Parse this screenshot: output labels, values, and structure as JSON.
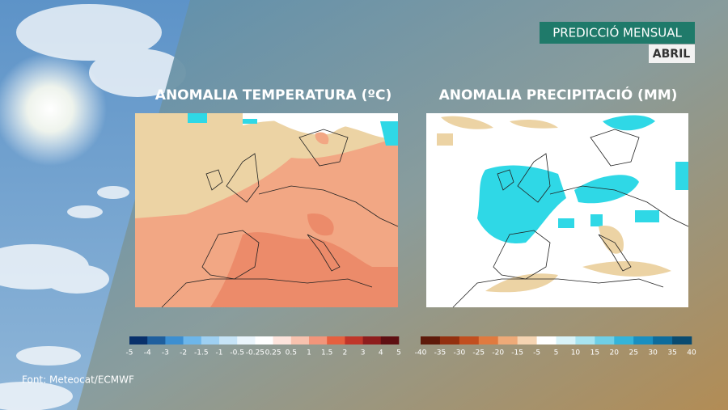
{
  "header": {
    "title": "PREDICCIÓ MENSUAL",
    "subtitle": "ABRIL"
  },
  "maps": [
    {
      "title": "ANOMALIA TEMPERATURA (ºC)",
      "legend": {
        "labels": [
          "-5",
          "-4",
          "-3",
          "-2",
          "-1.5",
          "-1",
          "-0.5",
          "-0.25",
          "0.25",
          "0.5",
          "1",
          "1.5",
          "2",
          "3",
          "4",
          "5"
        ],
        "colors": [
          "#08306b",
          "#1f5f9e",
          "#3d8fd1",
          "#6db6ea",
          "#9ed0f2",
          "#c6e4f7",
          "#eaf5fc",
          "#ffffff",
          "#fde4dc",
          "#f8c2ae",
          "#f2957a",
          "#e5603f",
          "#c0362a",
          "#8e1d1d",
          "#5e0f12"
        ]
      }
    },
    {
      "title": "ANOMALIA PRECIPITACIÓ (MM)",
      "legend": {
        "labels": [
          "-40",
          "-35",
          "-30",
          "-25",
          "-20",
          "-15",
          "-5",
          "5",
          "10",
          "15",
          "20",
          "25",
          "30",
          "35",
          "40"
        ],
        "colors": [
          "#5e1a0a",
          "#93300f",
          "#c24f1f",
          "#e07a3f",
          "#eeaa78",
          "#f5d4b2",
          "#ffffff",
          "#d9f3f8",
          "#a8e4f0",
          "#6fcfe6",
          "#35b4d9",
          "#1a8fc0",
          "#0e6c9c",
          "#0a4b70"
        ]
      }
    }
  ],
  "source": "Font: Meteocat/ECMWF"
}
